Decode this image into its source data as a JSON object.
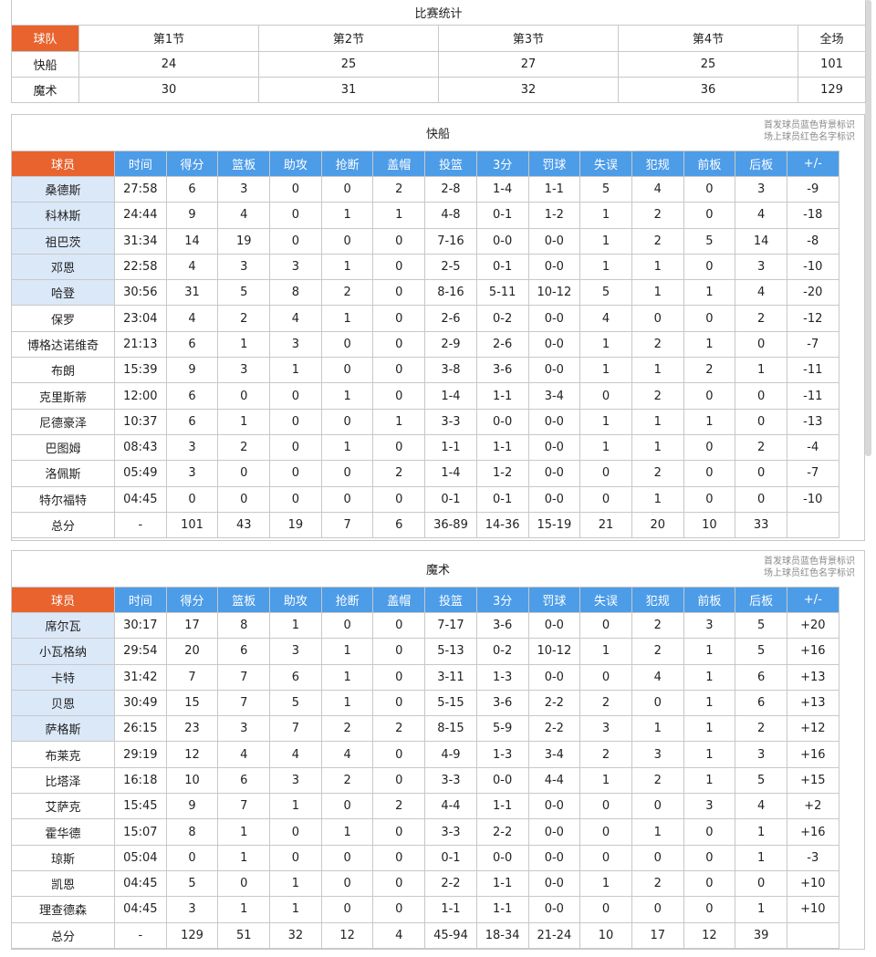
{
  "score": {
    "title": "比赛统计",
    "headers": [
      "球队",
      "第1节",
      "第2节",
      "第3节",
      "第4节",
      "全场"
    ],
    "rows": [
      [
        "快船",
        "24",
        "25",
        "27",
        "25",
        "101"
      ],
      [
        "魔术",
        "30",
        "31",
        "32",
        "36",
        "129"
      ]
    ]
  },
  "teams": [
    {
      "title": "快船",
      "notes": [
        "首发球员蓝色背景标识",
        "场上球员红色名字标识"
      ],
      "headers": [
        "球员",
        "时间",
        "得分",
        "篮板",
        "助攻",
        "抢断",
        "盖帽",
        "投篮",
        "3分",
        "罚球",
        "失误",
        "犯规",
        "前板",
        "后板",
        "+/-"
      ],
      "rows": [
        [
          "桑德斯",
          "27:58",
          "6",
          "3",
          "0",
          "0",
          "2",
          "2-8",
          "1-4",
          "1-1",
          "5",
          "4",
          "0",
          "3",
          "-9"
        ],
        [
          "科林斯",
          "24:44",
          "9",
          "4",
          "0",
          "1",
          "1",
          "4-8",
          "0-1",
          "1-2",
          "1",
          "2",
          "0",
          "4",
          "-18"
        ],
        [
          "祖巴茨",
          "31:34",
          "14",
          "19",
          "0",
          "0",
          "0",
          "7-16",
          "0-0",
          "0-0",
          "1",
          "2",
          "5",
          "14",
          "-8"
        ],
        [
          "邓恩",
          "22:58",
          "4",
          "3",
          "3",
          "1",
          "0",
          "2-5",
          "0-1",
          "0-0",
          "1",
          "1",
          "0",
          "3",
          "-10"
        ],
        [
          "哈登",
          "30:56",
          "31",
          "5",
          "8",
          "2",
          "0",
          "8-16",
          "5-11",
          "10-12",
          "5",
          "1",
          "1",
          "4",
          "-20"
        ],
        [
          "保罗",
          "23:04",
          "4",
          "2",
          "4",
          "1",
          "0",
          "2-6",
          "0-2",
          "0-0",
          "4",
          "0",
          "0",
          "2",
          "-12"
        ],
        [
          "博格达诺维奇",
          "21:13",
          "6",
          "1",
          "3",
          "0",
          "0",
          "2-9",
          "2-6",
          "0-0",
          "1",
          "2",
          "1",
          "0",
          "-7"
        ],
        [
          "布朗",
          "15:39",
          "9",
          "3",
          "1",
          "0",
          "0",
          "3-8",
          "3-6",
          "0-0",
          "1",
          "1",
          "2",
          "1",
          "-11"
        ],
        [
          "克里斯蒂",
          "12:00",
          "6",
          "0",
          "0",
          "1",
          "0",
          "1-4",
          "1-1",
          "3-4",
          "0",
          "2",
          "0",
          "0",
          "-11"
        ],
        [
          "尼德豪泽",
          "10:37",
          "6",
          "1",
          "0",
          "0",
          "1",
          "3-3",
          "0-0",
          "0-0",
          "1",
          "1",
          "1",
          "0",
          "-13"
        ],
        [
          "巴图姆",
          "08:43",
          "3",
          "2",
          "0",
          "1",
          "0",
          "1-1",
          "1-1",
          "0-0",
          "1",
          "1",
          "0",
          "2",
          "-4"
        ],
        [
          "洛佩斯",
          "05:49",
          "3",
          "0",
          "0",
          "0",
          "2",
          "1-4",
          "1-2",
          "0-0",
          "0",
          "2",
          "0",
          "0",
          "-7"
        ],
        [
          "特尔福特",
          "04:45",
          "0",
          "0",
          "0",
          "0",
          "0",
          "0-1",
          "0-1",
          "0-0",
          "0",
          "1",
          "0",
          "0",
          "-10"
        ]
      ],
      "total": [
        "总分",
        "-",
        "101",
        "43",
        "19",
        "7",
        "6",
        "36-89",
        "14-36",
        "15-19",
        "21",
        "20",
        "10",
        "33"
      ]
    },
    {
      "title": "魔术",
      "notes": [
        "首发球员蓝色背景标识",
        "场上球员红色名字标识"
      ],
      "headers": [
        "球员",
        "时间",
        "得分",
        "篮板",
        "助攻",
        "抢断",
        "盖帽",
        "投篮",
        "3分",
        "罚球",
        "失误",
        "犯规",
        "前板",
        "后板",
        "+/-"
      ],
      "rows": [
        [
          "席尔瓦",
          "30:17",
          "17",
          "8",
          "1",
          "0",
          "0",
          "7-17",
          "3-6",
          "0-0",
          "0",
          "2",
          "3",
          "5",
          "+20"
        ],
        [
          "小瓦格纳",
          "29:54",
          "20",
          "6",
          "3",
          "1",
          "0",
          "5-13",
          "0-2",
          "10-12",
          "1",
          "2",
          "1",
          "5",
          "+16"
        ],
        [
          "卡特",
          "31:42",
          "7",
          "7",
          "6",
          "1",
          "0",
          "3-11",
          "1-3",
          "0-0",
          "0",
          "4",
          "1",
          "6",
          "+13"
        ],
        [
          "贝恩",
          "30:49",
          "15",
          "7",
          "5",
          "1",
          "0",
          "5-15",
          "3-6",
          "2-2",
          "2",
          "0",
          "1",
          "6",
          "+13"
        ],
        [
          "萨格斯",
          "26:15",
          "23",
          "3",
          "7",
          "2",
          "2",
          "8-15",
          "5-9",
          "2-2",
          "3",
          "1",
          "1",
          "2",
          "+12"
        ],
        [
          "布莱克",
          "29:19",
          "12",
          "4",
          "4",
          "4",
          "0",
          "4-9",
          "1-3",
          "3-4",
          "2",
          "3",
          "1",
          "3",
          "+16"
        ],
        [
          "比塔泽",
          "16:18",
          "10",
          "6",
          "3",
          "2",
          "0",
          "3-3",
          "0-0",
          "4-4",
          "1",
          "2",
          "1",
          "5",
          "+15"
        ],
        [
          "艾萨克",
          "15:45",
          "9",
          "7",
          "1",
          "0",
          "2",
          "4-4",
          "1-1",
          "0-0",
          "0",
          "0",
          "3",
          "4",
          "+2"
        ],
        [
          "霍华德",
          "15:07",
          "8",
          "1",
          "0",
          "1",
          "0",
          "3-3",
          "2-2",
          "0-0",
          "0",
          "1",
          "0",
          "1",
          "+16"
        ],
        [
          "琼斯",
          "05:04",
          "0",
          "1",
          "0",
          "0",
          "0",
          "0-1",
          "0-0",
          "0-0",
          "0",
          "0",
          "0",
          "1",
          "-3"
        ],
        [
          "凯恩",
          "04:45",
          "5",
          "0",
          "1",
          "0",
          "0",
          "2-2",
          "1-1",
          "0-0",
          "1",
          "2",
          "0",
          "0",
          "+10"
        ],
        [
          "理查德森",
          "04:45",
          "3",
          "1",
          "1",
          "0",
          "0",
          "1-1",
          "1-1",
          "0-0",
          "0",
          "0",
          "0",
          "1",
          "+10"
        ]
      ],
      "total": [
        "总分",
        "-",
        "129",
        "51",
        "32",
        "12",
        "4",
        "45-94",
        "18-34",
        "21-24",
        "10",
        "17",
        "12",
        "39"
      ]
    }
  ]
}
